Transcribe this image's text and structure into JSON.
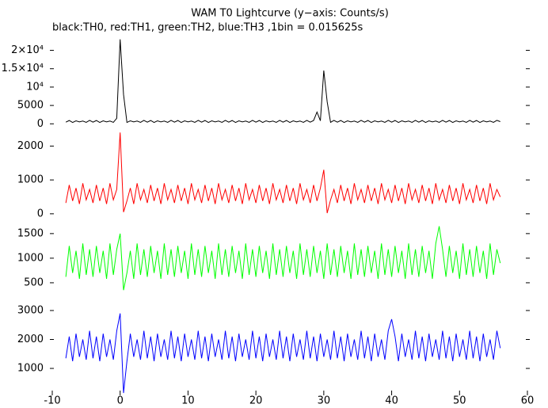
{
  "chart_data": {
    "type": "line",
    "title": "WAM T0 Lightcurve (y−axis: Counts/s)",
    "subtitle": "black:TH0, red:TH1, green:TH2, blue:TH3 ,1bin = 0.015625s",
    "xlim": [
      -10,
      60
    ],
    "xticks": [
      -10,
      0,
      10,
      20,
      30,
      40,
      50,
      60
    ],
    "x": [
      -8,
      -7.5,
      -7,
      -6.5,
      -6,
      -5.5,
      -5,
      -4.5,
      -4,
      -3.5,
      -3,
      -2.5,
      -2,
      -1.5,
      -1,
      -0.5,
      0,
      0.5,
      1,
      1.5,
      2,
      2.5,
      3,
      3.5,
      4,
      4.5,
      5,
      5.5,
      6,
      6.5,
      7,
      7.5,
      8,
      8.5,
      9,
      9.5,
      10,
      10.5,
      11,
      11.5,
      12,
      12.5,
      13,
      13.5,
      14,
      14.5,
      15,
      15.5,
      16,
      16.5,
      17,
      17.5,
      18,
      18.5,
      19,
      19.5,
      20,
      20.5,
      21,
      21.5,
      22,
      22.5,
      23,
      23.5,
      24,
      24.5,
      25,
      25.5,
      26,
      26.5,
      27,
      27.5,
      28,
      28.5,
      29,
      29.5,
      30,
      30.5,
      31,
      31.5,
      32,
      32.5,
      33,
      33.5,
      34,
      34.5,
      35,
      35.5,
      36,
      36.5,
      37,
      37.5,
      38,
      38.5,
      39,
      39.5,
      40,
      40.5,
      41,
      41.5,
      42,
      42.5,
      43,
      43.5,
      44,
      44.5,
      45,
      45.5,
      46,
      46.5,
      47,
      47.5,
      48,
      48.5,
      49,
      49.5,
      50,
      50.5,
      51,
      51.5,
      52,
      52.5,
      53,
      53.5,
      54,
      54.5,
      55,
      55.5,
      56
    ],
    "series": [
      {
        "color": "#000000",
        "ylim": [
          -800,
          24000
        ],
        "yticks": [
          0,
          5000,
          {
            "value": 10000,
            "label": "10⁴"
          },
          {
            "value": 15000,
            "label": "1.5×10⁴"
          },
          {
            "value": 20000,
            "label": "2×10⁴"
          }
        ],
        "values": [
          450,
          900,
          380,
          820,
          520,
          760,
          400,
          950,
          450,
          900,
          380,
          820,
          520,
          760,
          400,
          1500,
          23000,
          8000,
          380,
          820,
          520,
          760,
          400,
          950,
          450,
          900,
          380,
          820,
          520,
          760,
          400,
          950,
          450,
          900,
          380,
          820,
          520,
          760,
          400,
          950,
          450,
          900,
          380,
          820,
          520,
          760,
          400,
          950,
          450,
          900,
          380,
          820,
          520,
          760,
          400,
          950,
          450,
          900,
          380,
          820,
          520,
          760,
          400,
          950,
          450,
          900,
          380,
          820,
          520,
          760,
          400,
          950,
          450,
          900,
          3200,
          820,
          14500,
          6000,
          400,
          950,
          450,
          900,
          380,
          820,
          520,
          760,
          400,
          950,
          450,
          900,
          380,
          820,
          520,
          760,
          400,
          950,
          450,
          900,
          380,
          820,
          520,
          760,
          400,
          950,
          450,
          900,
          380,
          820,
          520,
          760,
          400,
          950,
          450,
          900,
          380,
          820,
          520,
          760,
          400,
          950,
          450,
          900,
          380,
          820,
          520,
          760,
          400,
          950,
          600
        ]
      },
      {
        "color": "#ff0000",
        "ylim": [
          -50,
          2500
        ],
        "yticks": [
          0,
          1000,
          2000
        ],
        "values": [
          320,
          850,
          380,
          760,
          290,
          900,
          410,
          720,
          320,
          850,
          380,
          760,
          290,
          900,
          410,
          720,
          2400,
          50,
          380,
          760,
          290,
          900,
          410,
          720,
          320,
          850,
          380,
          760,
          290,
          900,
          410,
          720,
          320,
          850,
          380,
          760,
          290,
          900,
          410,
          720,
          320,
          850,
          380,
          760,
          290,
          900,
          410,
          720,
          320,
          850,
          380,
          760,
          290,
          900,
          410,
          720,
          320,
          850,
          380,
          760,
          290,
          900,
          410,
          720,
          320,
          850,
          380,
          760,
          290,
          900,
          410,
          720,
          320,
          850,
          380,
          760,
          1300,
          20,
          410,
          720,
          320,
          850,
          380,
          760,
          290,
          900,
          410,
          720,
          320,
          850,
          380,
          760,
          290,
          900,
          410,
          720,
          320,
          850,
          380,
          760,
          290,
          900,
          410,
          720,
          320,
          850,
          380,
          760,
          290,
          900,
          410,
          720,
          320,
          850,
          380,
          760,
          290,
          900,
          410,
          720,
          320,
          850,
          380,
          760,
          290,
          900,
          410,
          720,
          500
        ]
      },
      {
        "color": "#00ff00",
        "ylim": [
          80,
          1820
        ],
        "yticks": [
          500,
          1000,
          1500
        ],
        "values": [
          620,
          1250,
          700,
          1150,
          580,
          1300,
          660,
          1180,
          620,
          1250,
          700,
          1150,
          580,
          1300,
          660,
          1180,
          1500,
          350,
          700,
          1150,
          580,
          1300,
          660,
          1180,
          620,
          1250,
          700,
          1150,
          580,
          1300,
          660,
          1180,
          620,
          1250,
          700,
          1150,
          580,
          1300,
          660,
          1180,
          620,
          1250,
          700,
          1150,
          580,
          1300,
          660,
          1180,
          620,
          1250,
          700,
          1150,
          580,
          1300,
          660,
          1180,
          620,
          1250,
          700,
          1150,
          580,
          1300,
          660,
          1180,
          620,
          1250,
          700,
          1150,
          580,
          1300,
          660,
          1180,
          620,
          1250,
          700,
          1150,
          580,
          1300,
          660,
          1180,
          620,
          1250,
          700,
          1150,
          580,
          1300,
          660,
          1180,
          620,
          1250,
          700,
          1150,
          580,
          1300,
          660,
          1180,
          620,
          1250,
          700,
          1150,
          580,
          1300,
          660,
          1180,
          620,
          1250,
          700,
          1150,
          580,
          1300,
          1650,
          1180,
          620,
          1250,
          700,
          1150,
          580,
          1300,
          660,
          1180,
          620,
          1250,
          700,
          1150,
          580,
          1300,
          660,
          1180,
          900
        ]
      },
      {
        "color": "#0000ff",
        "ylim": [
          180,
          3190
        ],
        "yticks": [
          1000,
          2000,
          3000
        ],
        "values": [
          1350,
          2100,
          1250,
          2200,
          1400,
          2000,
          1300,
          2300,
          1350,
          2100,
          1250,
          2200,
          1400,
          2000,
          1300,
          2300,
          2900,
          150,
          1250,
          2200,
          1400,
          2000,
          1300,
          2300,
          1350,
          2100,
          1250,
          2200,
          1400,
          2000,
          1300,
          2300,
          1350,
          2100,
          1250,
          2200,
          1400,
          2000,
          1300,
          2300,
          1350,
          2100,
          1250,
          2200,
          1400,
          2000,
          1300,
          2300,
          1350,
          2100,
          1250,
          2200,
          1400,
          2000,
          1300,
          2300,
          1350,
          2100,
          1250,
          2200,
          1400,
          2000,
          1300,
          2300,
          1350,
          2100,
          1250,
          2200,
          1400,
          2000,
          1300,
          2300,
          1350,
          2100,
          1250,
          2200,
          1400,
          2000,
          1300,
          2300,
          1350,
          2100,
          1250,
          2200,
          1400,
          2000,
          1300,
          2300,
          1350,
          2100,
          1250,
          2200,
          1400,
          2000,
          1300,
          2300,
          2700,
          2100,
          1250,
          2200,
          1400,
          2000,
          1300,
          2300,
          1350,
          2100,
          1250,
          2200,
          1400,
          2000,
          1300,
          2300,
          1350,
          2100,
          1250,
          2200,
          1400,
          2000,
          1300,
          2300,
          1350,
          2100,
          1250,
          2200,
          1400,
          2000,
          1300,
          2300,
          1700
        ]
      }
    ]
  }
}
